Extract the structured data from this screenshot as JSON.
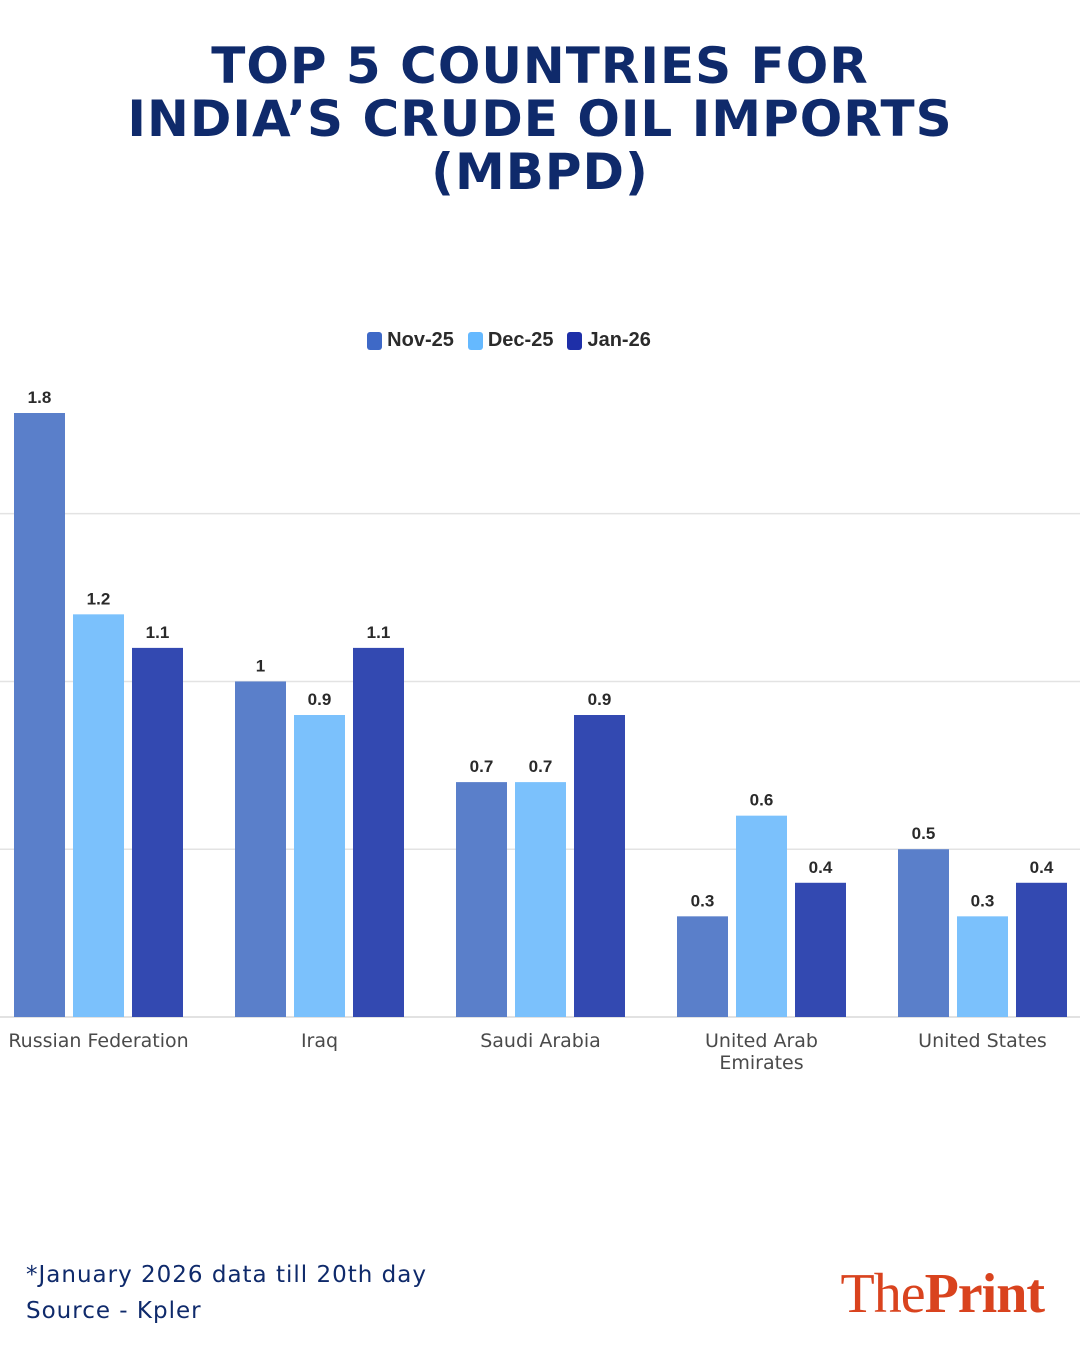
{
  "title_lines": [
    "TOP 5 COUNTRIES FOR",
    "INDIA’S CRUDE OIL IMPORTS",
    "(MBPD)"
  ],
  "legend": [
    {
      "label": "Nov-25",
      "color": "#5a7fca"
    },
    {
      "label": "Dec-25",
      "color": "#7bc1fc"
    },
    {
      "label": "Jan-26",
      "color": "#3349b1"
    }
  ],
  "chart_data": {
    "type": "bar",
    "title": "TOP 5 COUNTRIES FOR INDIA’S CRUDE OIL IMPORTS (MBPD)",
    "categories": [
      [
        "Russian Federation"
      ],
      [
        "Iraq"
      ],
      [
        "Saudi Arabia"
      ],
      [
        "United Arab",
        "Emirates"
      ],
      [
        "United States"
      ]
    ],
    "series": [
      {
        "name": "Nov-25",
        "color": "#5a7fca",
        "values": [
          1.8,
          1,
          0.7,
          0.3,
          0.5
        ]
      },
      {
        "name": "Dec-25",
        "color": "#7bc1fc",
        "values": [
          1.2,
          0.9,
          0.7,
          0.6,
          0.3
        ]
      },
      {
        "name": "Jan-26",
        "color": "#3349b1",
        "values": [
          1.1,
          1.1,
          0.9,
          0.4,
          0.4
        ]
      }
    ],
    "ylim": [
      0,
      1.8
    ],
    "gridlines": [
      0.5,
      1.0,
      1.5
    ],
    "xlabel": "",
    "ylabel": "",
    "legend_position": "top-center"
  },
  "footer": {
    "note": "*January 2026 data till 20th day",
    "source": "Source - Kpler"
  },
  "logo": {
    "part1": "The",
    "part2": "Print"
  }
}
